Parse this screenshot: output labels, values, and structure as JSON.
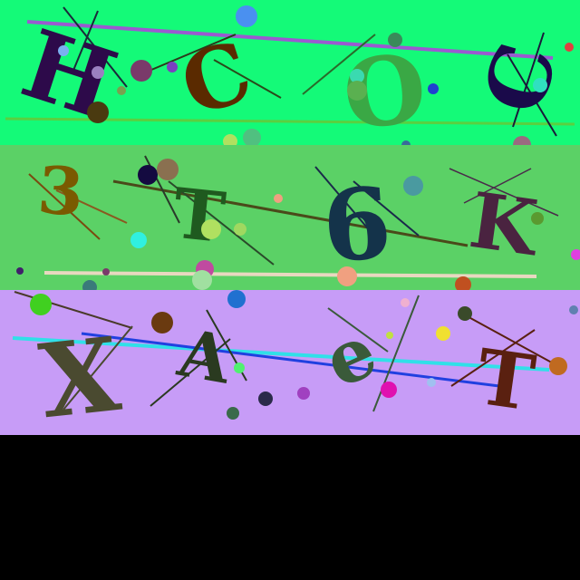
{
  "background": "#000000",
  "bands": [
    {
      "color": "#14fa78",
      "chars": [
        {
          "text": "H",
          "color": "#2d0a4a"
        },
        {
          "text": "C",
          "color": "#5a2a00"
        },
        {
          "text": "O",
          "color": "#3aa845"
        },
        {
          "text": "C",
          "color": "#1a0a4a"
        }
      ]
    },
    {
      "color": "#5bd166",
      "chars": [
        {
          "text": "3",
          "color": "#7a5a00"
        },
        {
          "text": "T",
          "color": "#1f5a1f"
        },
        {
          "text": "6",
          "color": "#14334a"
        },
        {
          "text": "K",
          "color": "#4a2340"
        }
      ]
    },
    {
      "color": "#c79cf7",
      "chars": [
        {
          "text": "X",
          "color": "#4a4a30"
        },
        {
          "text": "A",
          "color": "#2a3a20"
        },
        {
          "text": "e",
          "color": "#3a5a3a"
        },
        {
          "text": "T",
          "color": "#5a2010"
        }
      ]
    }
  ]
}
